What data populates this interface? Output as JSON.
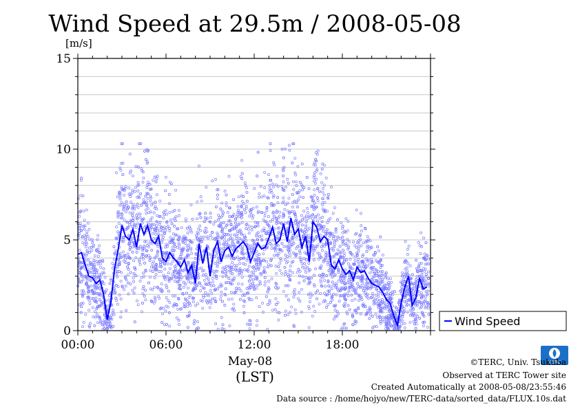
{
  "chart_data": {
    "type": "scatter",
    "title": "Wind Speed at 29.5m / 2008-05-08",
    "ylabel": "[m/s]",
    "xlabel_date": "May-08",
    "xlabel": "(LST)",
    "ylim": [
      0,
      15
    ],
    "xlim": [
      0,
      24
    ],
    "yticks": [
      "0",
      "5",
      "10",
      "15"
    ],
    "xticks": [
      "00:00",
      "06:00",
      "12:00",
      "18:00"
    ],
    "grid": true,
    "legend": {
      "placement": "right",
      "label": "Wind Speed"
    },
    "colors": {
      "mean_line": "#0000ff",
      "points": "#7a7aff"
    },
    "series": [
      {
        "name": "Wind Speed",
        "x": [
          0.0,
          0.25,
          0.5,
          0.75,
          1.0,
          1.25,
          1.5,
          1.75,
          2.0,
          2.25,
          2.5,
          2.75,
          3.0,
          3.25,
          3.5,
          3.75,
          4.0,
          4.25,
          4.5,
          4.75,
          5.0,
          5.25,
          5.5,
          5.75,
          6.0,
          6.25,
          6.5,
          6.75,
          7.0,
          7.25,
          7.5,
          7.75,
          8.0,
          8.25,
          8.5,
          8.75,
          9.0,
          9.25,
          9.5,
          9.75,
          10.0,
          10.25,
          10.5,
          10.75,
          11.0,
          11.25,
          11.5,
          11.75,
          12.0,
          12.25,
          12.5,
          12.75,
          13.0,
          13.25,
          13.5,
          13.75,
          14.0,
          14.25,
          14.5,
          14.75,
          15.0,
          15.25,
          15.5,
          15.75,
          16.0,
          16.25,
          16.5,
          16.75,
          17.0,
          17.25,
          17.5,
          17.75,
          18.0,
          18.25,
          18.5,
          18.75,
          19.0,
          19.25,
          19.5,
          19.75,
          20.0,
          20.25,
          20.5,
          20.75,
          21.0,
          21.25,
          21.5,
          21.75,
          22.0,
          22.25,
          22.5,
          22.75,
          23.0,
          23.25,
          23.5,
          23.75
        ],
        "values": [
          4.2,
          4.3,
          3.6,
          3.0,
          2.9,
          2.6,
          2.8,
          2.0,
          0.6,
          1.6,
          3.4,
          4.5,
          5.8,
          5.2,
          5.0,
          5.6,
          4.6,
          5.9,
          5.3,
          5.8,
          5.0,
          4.8,
          5.2,
          4.0,
          3.8,
          4.3,
          4.0,
          3.8,
          3.5,
          3.9,
          3.2,
          3.6,
          2.6,
          4.8,
          3.7,
          4.6,
          3.0,
          4.4,
          4.9,
          3.8,
          4.4,
          4.6,
          4.1,
          4.5,
          4.7,
          4.9,
          4.6,
          3.8,
          4.3,
          4.8,
          4.5,
          4.6,
          5.1,
          5.7,
          4.8,
          5.0,
          5.9,
          4.9,
          6.2,
          5.3,
          5.6,
          4.6,
          5.2,
          3.8,
          6.0,
          5.7,
          4.9,
          5.2,
          5.0,
          3.6,
          3.4,
          3.9,
          3.4,
          3.1,
          3.3,
          2.8,
          3.5,
          3.2,
          3.3,
          2.9,
          2.6,
          2.5,
          2.4,
          2.1,
          1.7,
          1.5,
          0.8,
          0.3,
          1.5,
          2.4,
          3.0,
          1.4,
          1.8,
          2.9,
          2.3,
          2.4
        ]
      }
    ]
  },
  "credits": {
    "copyright": "©TERC, Univ. Tsukuba",
    "observed": "Observed at TERC Tower site",
    "created": "Created Automatically at 2008-05-08/23:55:46",
    "source": "Data source : /home/hojyo/new/TERC-data/sorted_data/FLUX.10s.dat"
  },
  "logo": {
    "text": "TERC"
  }
}
